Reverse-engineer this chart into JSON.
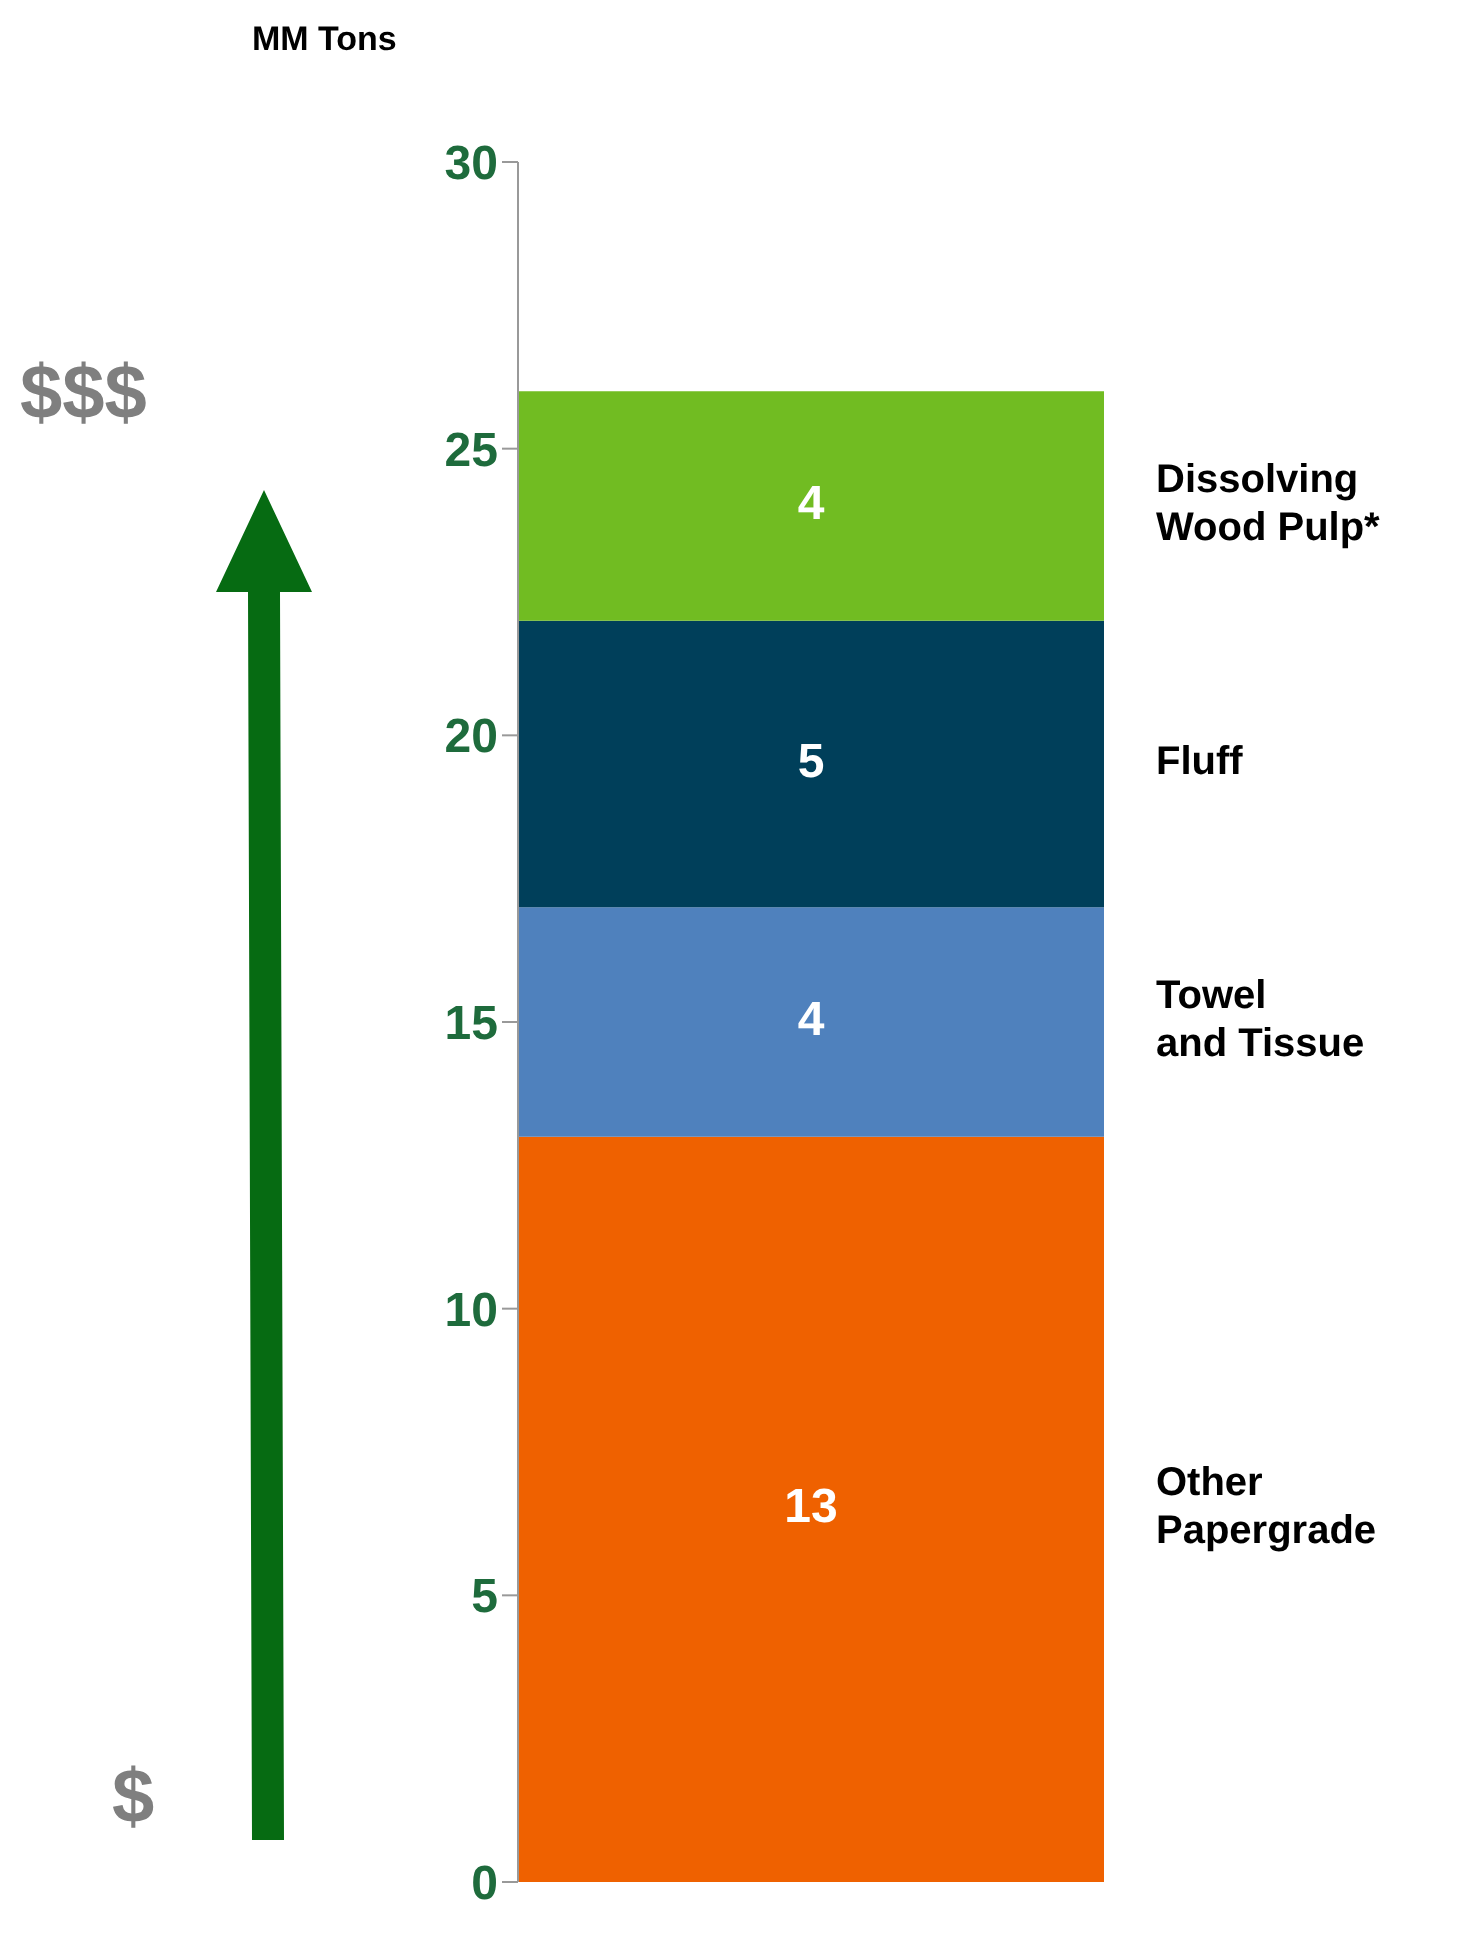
{
  "chart_data": {
    "type": "bar",
    "stacked": true,
    "ylabel": "MM Tons",
    "categories": [
      null
    ],
    "series": [
      {
        "name": "Other Papergrade",
        "color": "#ef6100",
        "values": [
          13
        ]
      },
      {
        "name": "Towel and Tissue",
        "color": "#4f81bd",
        "values": [
          4
        ]
      },
      {
        "name": "Fluff",
        "color": "#003f5a",
        "values": [
          5
        ]
      },
      {
        "name": "Dissolving Wood Pulp*",
        "color": "#71bc22",
        "values": [
          4
        ]
      }
    ],
    "ylim": [
      0,
      30
    ],
    "yticks": [
      0,
      5,
      10,
      15,
      20,
      25,
      30
    ],
    "data_labels": true,
    "legend": false,
    "grid": false,
    "annotations": [
      "$$$",
      "$"
    ]
  }
}
